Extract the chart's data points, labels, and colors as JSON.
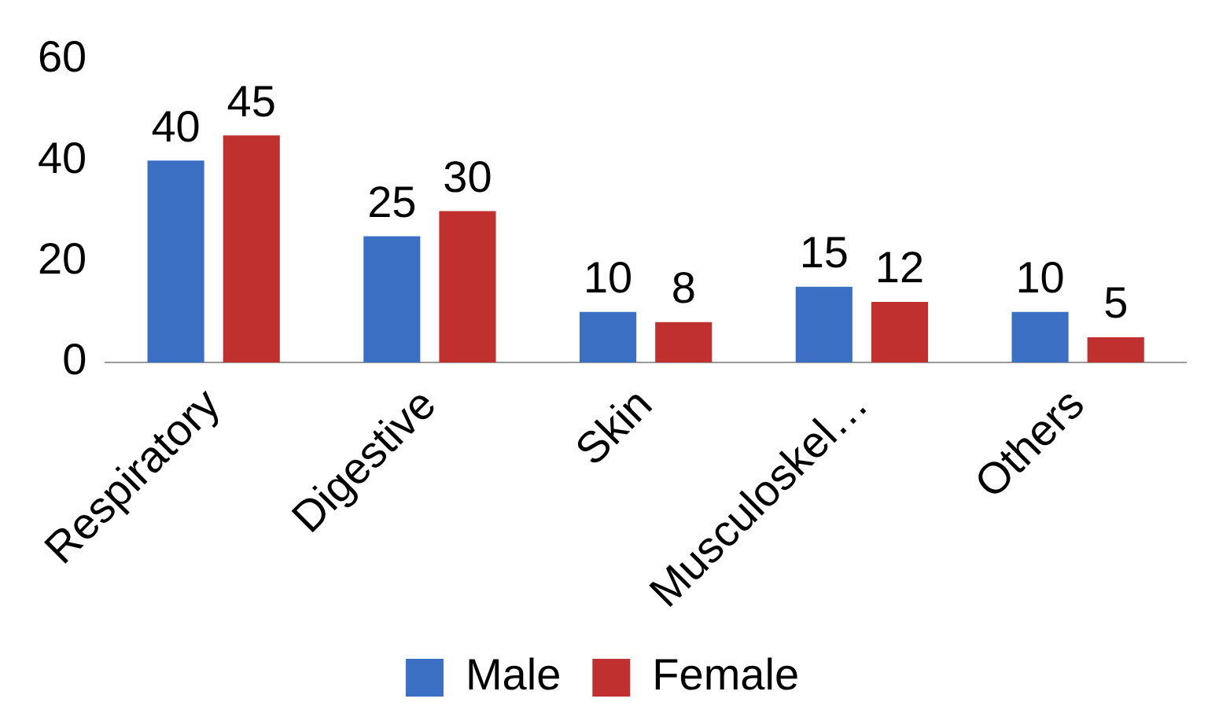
{
  "chart_data": {
    "type": "bar",
    "categories": [
      "Respiratory",
      "Digestive",
      "Skin",
      "Musculoskel…",
      "Others"
    ],
    "series": [
      {
        "name": "Male",
        "color": "#3a6fc4",
        "values": [
          40,
          25,
          10,
          15,
          10
        ]
      },
      {
        "name": "Female",
        "color": "#c0302e",
        "values": [
          45,
          30,
          8,
          12,
          5
        ]
      }
    ],
    "ylim": [
      0,
      60
    ],
    "yticks": [
      0,
      20,
      40,
      60
    ],
    "data_labels": true,
    "legend": "bottom",
    "grid": false
  }
}
